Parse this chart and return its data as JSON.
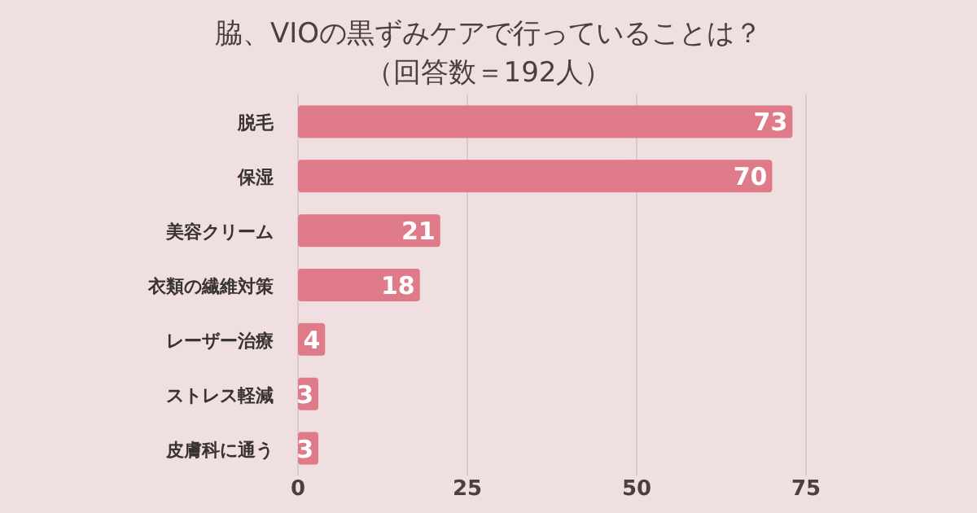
{
  "chart_data": {
    "type": "bar",
    "orientation": "horizontal",
    "title": "脇、VIOの黒ずみケアで行っていることは？",
    "subtitle": "（回答数＝192人）",
    "categories": [
      "脱毛",
      "保湿",
      "美容クリーム",
      "衣類の繊維対策",
      "レーザー治療",
      "ストレス軽減",
      "皮膚科に通う"
    ],
    "values": [
      73,
      70,
      21,
      18,
      4,
      3,
      3
    ],
    "color": "#df7b88",
    "xlim": [
      0,
      75
    ],
    "xticks": [
      0,
      25,
      50,
      75
    ],
    "grid": "x",
    "data_labels": true
  }
}
